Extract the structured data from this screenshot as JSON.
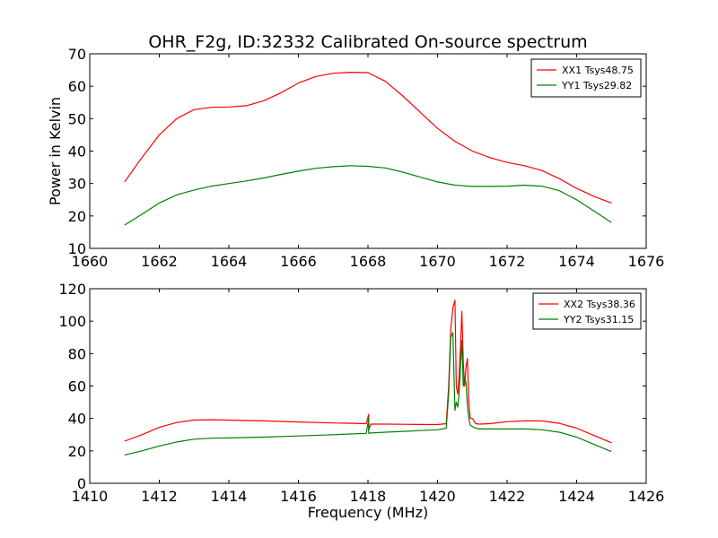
{
  "figure": {
    "title": "OHR_F2g, ID:32332 Calibrated On-source spectrum"
  },
  "chart_data": [
    {
      "type": "line",
      "title": "OHR_F2g, ID:32332 Calibrated On-source spectrum",
      "xlabel": "",
      "ylabel": "Power in Kelvin",
      "xlim": [
        1660,
        1676
      ],
      "ylim": [
        10,
        70
      ],
      "xticks": [
        1660,
        1662,
        1664,
        1666,
        1668,
        1670,
        1672,
        1674,
        1676
      ],
      "yticks": [
        10,
        20,
        30,
        40,
        50,
        60,
        70
      ],
      "grid": false,
      "legend_position": "top-right",
      "series": [
        {
          "name": "XX1 Tsys48.75",
          "color": "#ff0000",
          "x": [
            1661.0,
            1661.5,
            1662.0,
            1662.5,
            1663.0,
            1663.5,
            1664.0,
            1664.5,
            1665.0,
            1665.5,
            1666.0,
            1666.5,
            1667.0,
            1667.5,
            1668.0,
            1668.5,
            1669.0,
            1669.5,
            1670.0,
            1670.5,
            1671.0,
            1671.5,
            1672.0,
            1672.5,
            1673.0,
            1673.5,
            1674.0,
            1674.5,
            1675.0
          ],
          "y": [
            30.5,
            38.0,
            45.0,
            50.0,
            52.8,
            53.5,
            53.6,
            54.0,
            55.5,
            58.0,
            61.0,
            63.0,
            64.0,
            64.3,
            64.2,
            61.5,
            57.0,
            52.0,
            47.0,
            43.0,
            40.0,
            38.0,
            36.5,
            35.5,
            34.0,
            31.5,
            28.5,
            26.0,
            24.0
          ]
        },
        {
          "name": "YY1 Tsys29.82",
          "color": "#008000",
          "x": [
            1661.0,
            1661.5,
            1662.0,
            1662.5,
            1663.0,
            1663.5,
            1664.0,
            1664.5,
            1665.0,
            1665.5,
            1666.0,
            1666.5,
            1667.0,
            1667.5,
            1668.0,
            1668.5,
            1669.0,
            1669.5,
            1670.0,
            1670.5,
            1671.0,
            1671.5,
            1672.0,
            1672.5,
            1673.0,
            1673.5,
            1674.0,
            1674.5,
            1675.0
          ],
          "y": [
            17.2,
            20.5,
            24.0,
            26.5,
            28.0,
            29.2,
            30.0,
            30.8,
            31.7,
            32.8,
            33.8,
            34.7,
            35.2,
            35.5,
            35.3,
            34.8,
            33.5,
            32.0,
            30.5,
            29.5,
            29.1,
            29.1,
            29.2,
            29.5,
            29.2,
            27.8,
            25.0,
            21.5,
            18.0
          ]
        }
      ]
    },
    {
      "type": "line",
      "title": "",
      "xlabel": "Frequency (MHz)",
      "ylabel": "",
      "xlim": [
        1410,
        1426
      ],
      "ylim": [
        0,
        120
      ],
      "xticks": [
        1410,
        1412,
        1414,
        1416,
        1418,
        1420,
        1422,
        1424,
        1426
      ],
      "yticks": [
        0,
        20,
        40,
        60,
        80,
        100,
        120
      ],
      "grid": false,
      "legend_position": "top-right",
      "series": [
        {
          "name": "XX2 Tsys38.36",
          "color": "#ff0000",
          "x": [
            1411.0,
            1411.5,
            1412.0,
            1412.5,
            1413.0,
            1413.5,
            1414.0,
            1415.0,
            1416.0,
            1417.0,
            1417.95,
            1418.02,
            1418.02,
            1418.08,
            1418.5,
            1419.0,
            1419.5,
            1420.0,
            1420.25,
            1420.32,
            1420.38,
            1420.44,
            1420.5,
            1420.54,
            1420.58,
            1420.62,
            1420.66,
            1420.7,
            1420.74,
            1420.78,
            1420.82,
            1420.86,
            1420.9,
            1420.94,
            1421.0,
            1421.1,
            1421.2,
            1421.5,
            1422.0,
            1422.5,
            1423.0,
            1423.5,
            1424.0,
            1424.5,
            1425.0
          ],
          "y": [
            26.0,
            30.0,
            34.5,
            37.5,
            39.0,
            39.2,
            39.0,
            38.5,
            37.8,
            37.2,
            36.8,
            42.5,
            33.0,
            36.5,
            36.5,
            36.4,
            36.3,
            36.2,
            36.8,
            60.0,
            95.0,
            108.0,
            113.0,
            60.0,
            55.0,
            65.0,
            85.0,
            106.0,
            75.0,
            60.0,
            72.0,
            77.0,
            50.0,
            40.0,
            40.0,
            36.8,
            36.5,
            36.8,
            38.0,
            38.5,
            38.5,
            37.0,
            34.0,
            29.5,
            25.0
          ]
        },
        {
          "name": "YY2 Tsys31.15",
          "color": "#008000",
          "x": [
            1411.0,
            1411.5,
            1412.0,
            1412.5,
            1413.0,
            1413.5,
            1414.0,
            1415.0,
            1416.0,
            1417.0,
            1417.95,
            1418.02,
            1418.02,
            1418.08,
            1418.5,
            1419.0,
            1419.5,
            1420.0,
            1420.25,
            1420.32,
            1420.38,
            1420.44,
            1420.5,
            1420.54,
            1420.58,
            1420.62,
            1420.66,
            1420.7,
            1420.74,
            1420.78,
            1420.82,
            1420.86,
            1420.9,
            1420.94,
            1421.0,
            1421.1,
            1421.2,
            1421.5,
            1422.0,
            1422.5,
            1423.0,
            1423.5,
            1424.0,
            1424.5,
            1425.0
          ],
          "y": [
            17.5,
            20.0,
            23.0,
            25.5,
            27.2,
            27.8,
            28.0,
            28.5,
            29.2,
            30.0,
            30.8,
            40.0,
            30.8,
            31.0,
            31.5,
            32.0,
            32.5,
            33.0,
            34.0,
            55.0,
            90.0,
            93.0,
            45.0,
            50.0,
            47.0,
            55.0,
            72.0,
            88.0,
            60.0,
            65.0,
            62.0,
            48.0,
            40.0,
            36.0,
            35.0,
            34.0,
            33.5,
            33.5,
            33.5,
            33.5,
            33.0,
            31.5,
            28.5,
            24.0,
            19.5
          ]
        }
      ]
    }
  ]
}
